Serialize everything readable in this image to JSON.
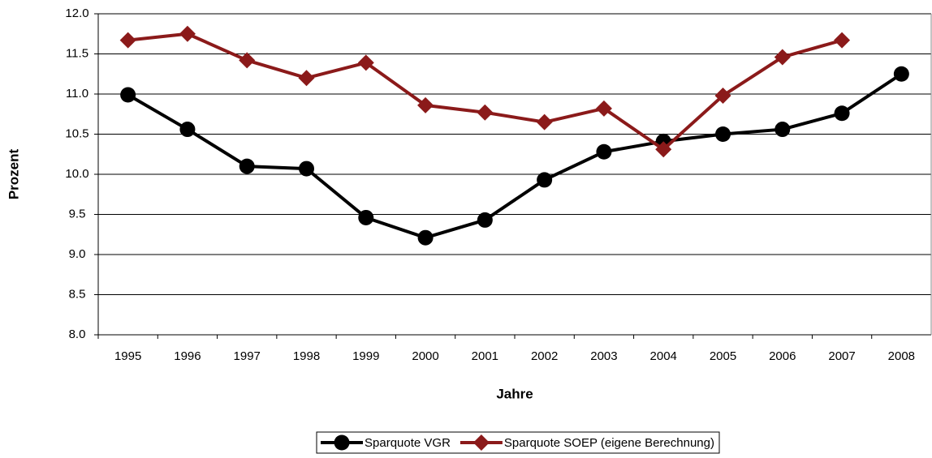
{
  "chart_data": {
    "type": "line",
    "x_label": "Jahre",
    "y_label": "Prozent",
    "categories": [
      "1995",
      "1996",
      "1997",
      "1998",
      "1999",
      "2000",
      "2001",
      "2002",
      "2003",
      "2004",
      "2005",
      "2006",
      "2007",
      "2008"
    ],
    "series": [
      {
        "name": "Sparquote VGR",
        "color": "#000000",
        "marker": "circle",
        "values": [
          10.99,
          10.56,
          10.1,
          10.07,
          9.46,
          9.21,
          9.43,
          9.93,
          10.28,
          10.41,
          10.5,
          10.56,
          10.76,
          11.25
        ]
      },
      {
        "name": "Sparquote SOEP (eigene Berechnung)",
        "color": "#8b1a1a",
        "marker": "diamond",
        "values": [
          11.67,
          11.75,
          11.42,
          11.2,
          11.39,
          10.86,
          10.77,
          10.65,
          10.82,
          10.31,
          10.98,
          11.46,
          11.67,
          null
        ]
      }
    ],
    "ylim": [
      8.0,
      12.0
    ],
    "yticks": [
      {
        "value": 8,
        "label": "8.0"
      },
      {
        "value": 8.5,
        "label": "8.5"
      },
      {
        "value": 9,
        "label": "9.0"
      },
      {
        "value": 9.5,
        "label": "9.5"
      },
      {
        "value": 10,
        "label": "10.0"
      },
      {
        "value": 10.5,
        "label": "10.5"
      },
      {
        "value": 11,
        "label": "11.0"
      },
      {
        "value": 11.5,
        "label": "11.5"
      },
      {
        "value": 12,
        "label": "12.0"
      }
    ],
    "grid": true,
    "legend": "bottom"
  }
}
